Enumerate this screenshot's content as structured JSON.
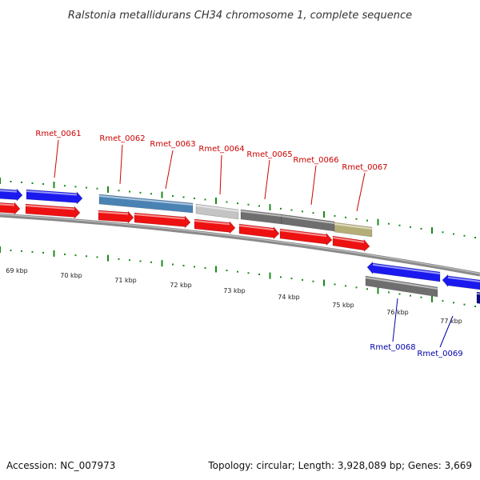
{
  "title": "Ralstonia metallidurans CH34 chromosome 1, complete sequence",
  "footer": {
    "accession": "Accession: NC_007973",
    "summary": "Topology: circular; Length: 3,928,089 bp; Genes: 3,669"
  },
  "colors": {
    "label_top": "#cc0000",
    "label_bottom": "#0000aa",
    "backbone": "#8a8a8a",
    "ticks": "#1a8a1a",
    "gene_blue": "#1a1aee",
    "gene_red": "#ee1111",
    "gene_steel": "#4a82b4",
    "gene_lightgray": "#c4c4c4",
    "gene_darkgray": "#6e6e6e",
    "gene_khaki": "#b5ad78",
    "gene_navy": "#0a0a8a"
  },
  "scale_labels": [
    "69 kbp",
    "70 kbp",
    "71 kbp",
    "72 kbp",
    "73 kbp",
    "74 kbp",
    "75 kbp",
    "76 kbp",
    "77 kbp"
  ],
  "gene_labels_top": [
    "Rmet_0061",
    "Rmet_0062",
    "Rmet_0063",
    "Rmet_0064",
    "Rmet_0065",
    "Rmet_0066",
    "Rmet_0067"
  ],
  "gene_labels_bottom": [
    "Rmet_0068",
    "Rmet_0069"
  ]
}
